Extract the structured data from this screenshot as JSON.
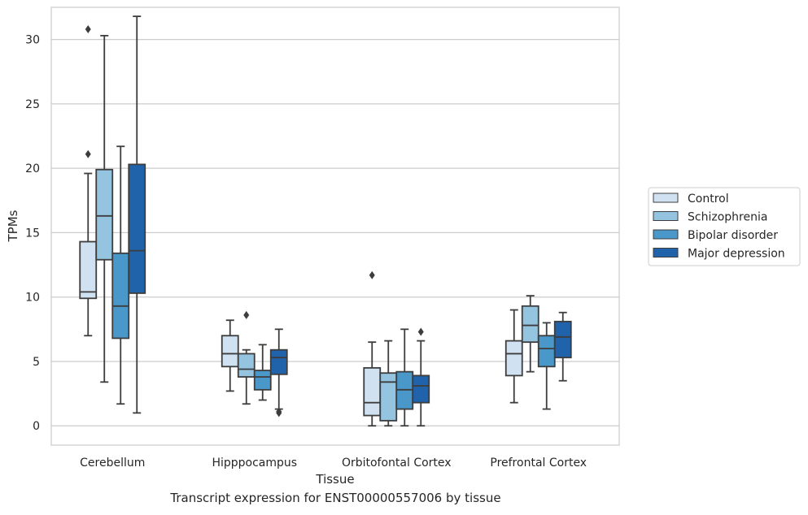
{
  "chart_data": {
    "type": "boxplot",
    "xlabel": "Tissue",
    "ylabel": "TPMs",
    "ylim": [
      -1.5,
      32.5
    ],
    "yticks": [
      0,
      5,
      10,
      15,
      20,
      25,
      30
    ],
    "grid": "horizontal",
    "legend_position": "right",
    "categories": [
      "Cerebellum",
      "Hipppocampus",
      "Orbitofontal Cortex",
      "Prefrontal Cortex"
    ],
    "series": [
      {
        "name": "Control",
        "color": "#d0e1f2",
        "boxes": [
          {
            "whislo": 7.0,
            "q1": 9.9,
            "med": 10.4,
            "q3": 14.3,
            "whishi": 19.6,
            "fliers": [
              21.1,
              30.8
            ]
          },
          {
            "whislo": 2.7,
            "q1": 4.6,
            "med": 5.6,
            "q3": 7.0,
            "whishi": 8.2,
            "fliers": []
          },
          {
            "whislo": 0.0,
            "q1": 0.8,
            "med": 1.8,
            "q3": 4.5,
            "whishi": 6.5,
            "fliers": [
              11.7
            ]
          },
          {
            "whislo": 1.8,
            "q1": 3.9,
            "med": 5.6,
            "q3": 6.6,
            "whishi": 9.0,
            "fliers": []
          }
        ]
      },
      {
        "name": "Schizophrenia",
        "color": "#94c4df",
        "boxes": [
          {
            "whislo": 3.4,
            "q1": 12.9,
            "med": 16.3,
            "q3": 19.9,
            "whishi": 30.3,
            "fliers": []
          },
          {
            "whislo": 1.7,
            "q1": 3.8,
            "med": 4.4,
            "q3": 5.6,
            "whishi": 5.9,
            "fliers": [
              8.6
            ]
          },
          {
            "whislo": 0.0,
            "q1": 0.4,
            "med": 3.4,
            "q3": 4.1,
            "whishi": 6.6,
            "fliers": []
          },
          {
            "whislo": 4.2,
            "q1": 6.5,
            "med": 7.8,
            "q3": 9.3,
            "whishi": 10.1,
            "fliers": []
          }
        ]
      },
      {
        "name": "Bipolar disorder",
        "color": "#4a98c9",
        "boxes": [
          {
            "whislo": 1.7,
            "q1": 6.8,
            "med": 9.3,
            "q3": 13.4,
            "whishi": 21.7,
            "fliers": []
          },
          {
            "whislo": 2.0,
            "q1": 2.8,
            "med": 3.8,
            "q3": 4.3,
            "whishi": 6.3,
            "fliers": []
          },
          {
            "whislo": 0.0,
            "q1": 1.3,
            "med": 2.8,
            "q3": 4.2,
            "whishi": 7.5,
            "fliers": []
          },
          {
            "whislo": 1.3,
            "q1": 4.6,
            "med": 6.0,
            "q3": 7.0,
            "whishi": 8.0,
            "fliers": []
          }
        ]
      },
      {
        "name": "Major depression",
        "color": "#2163aa",
        "boxes": [
          {
            "whislo": 1.0,
            "q1": 10.3,
            "med": 13.6,
            "q3": 20.3,
            "whishi": 31.8,
            "fliers": []
          },
          {
            "whislo": 1.3,
            "q1": 4.0,
            "med": 5.3,
            "q3": 5.9,
            "whishi": 7.5,
            "fliers": [
              1.0,
              1.1
            ]
          },
          {
            "whislo": 0.0,
            "q1": 1.8,
            "med": 3.1,
            "q3": 3.9,
            "whishi": 6.6,
            "fliers": [
              7.3
            ]
          },
          {
            "whislo": 3.5,
            "q1": 5.3,
            "med": 6.9,
            "q3": 8.1,
            "whishi": 8.8,
            "fliers": []
          }
        ]
      }
    ]
  },
  "caption": "Transcript expression for ENST00000557006 by tissue"
}
